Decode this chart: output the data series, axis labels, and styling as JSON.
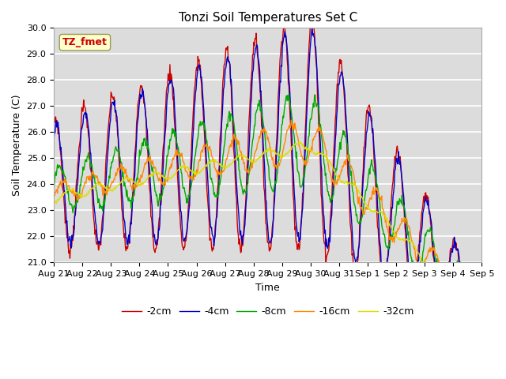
{
  "title": "Tonzi Soil Temperatures Set C",
  "xlabel": "Time",
  "ylabel": "Soil Temperature (C)",
  "ylim": [
    21.0,
    30.0
  ],
  "yticks": [
    21.0,
    22.0,
    23.0,
    24.0,
    25.0,
    26.0,
    27.0,
    28.0,
    29.0,
    30.0
  ],
  "xtick_labels": [
    "Aug 21",
    "Aug 22",
    "Aug 23",
    "Aug 24",
    "Aug 25",
    "Aug 26",
    "Aug 27",
    "Aug 28",
    "Aug 29",
    "Aug 30",
    "Aug 31",
    "Sep 1",
    "Sep 2",
    "Sep 3",
    "Sep 4",
    "Sep 5"
  ],
  "legend_labels": [
    "-2cm",
    "-4cm",
    "-8cm",
    "-16cm",
    "-32cm"
  ],
  "legend_colors": [
    "#cc0000",
    "#0000cc",
    "#00aa00",
    "#ff8800",
    "#dddd00"
  ],
  "annotation_text": "TZ_fmet",
  "annotation_color": "#cc0000",
  "annotation_bg": "#ffffcc",
  "plot_bg": "#dcdcdc",
  "grid_color": "#ffffff"
}
